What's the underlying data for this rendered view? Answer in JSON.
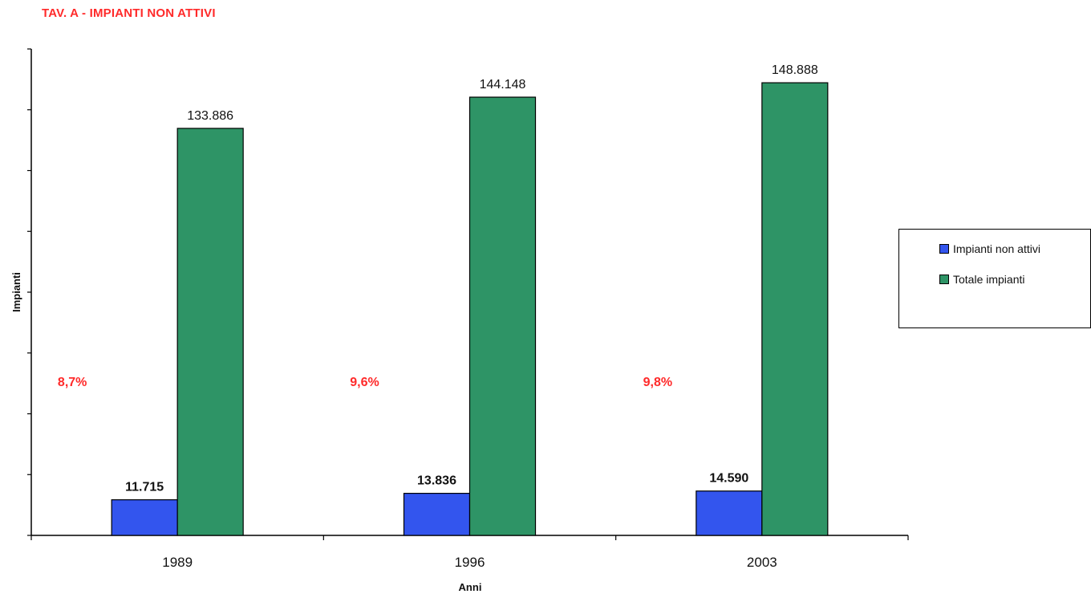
{
  "chart_data": {
    "type": "bar",
    "title": "TAV. A - IMPIANTI NON ATTIVI",
    "xlabel": "Anni",
    "ylabel": "Impianti",
    "categories": [
      "1989",
      "1996",
      "2003"
    ],
    "series": [
      {
        "name": "Impianti non attivi",
        "color": "#3355ee",
        "values": [
          11715,
          13836,
          14590
        ],
        "labels": [
          "11.715",
          "13.836",
          "14.590"
        ]
      },
      {
        "name": "Totale impianti",
        "color": "#2e9466",
        "values": [
          133886,
          144148,
          148888
        ],
        "labels": [
          "133.886",
          "144.148",
          "148.888"
        ]
      }
    ],
    "annotations": [
      "8,7%",
      "9,6%",
      "9,8%"
    ],
    "annotation_color": "#ff2a2a",
    "ylim": [
      0,
      160000
    ],
    "ytick_step": 20000,
    "ytick_labels_visible": false,
    "grid": false,
    "legend_position": "right"
  }
}
